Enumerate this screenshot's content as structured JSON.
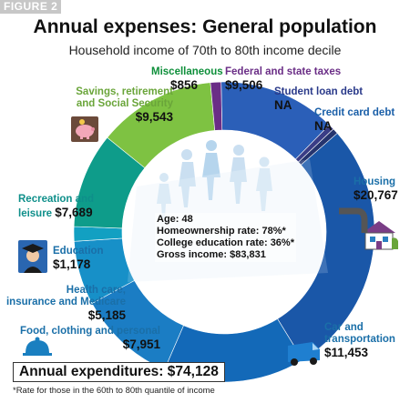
{
  "figure_label": "FIGURE 2",
  "chart_data": {
    "type": "pie",
    "title": "Annual expenses: General population",
    "subtitle": "Household income of 70th to 80th income decile",
    "categories": [
      "Federal and state taxes",
      "Student loan debt",
      "Credit card debt",
      "Housing",
      "Car and transportation",
      "Food, clothing and personal",
      "Health care, insurance and Medicare",
      "Education",
      "Recreation and leisure",
      "Savings, retirement and Social Security",
      "Miscellaneous"
    ],
    "values": [
      9506,
      null,
      null,
      20767,
      11453,
      7951,
      5185,
      1178,
      7689,
      9543,
      856
    ],
    "value_labels": [
      "$9,506",
      "NA",
      "NA",
      "$20,767",
      "$11,453",
      "$7,951",
      "$5,185",
      "$1,178",
      "$7,689",
      "$9,543",
      "$856"
    ],
    "colors": [
      "#2b5fb8",
      "#3a3d86",
      "#25346e",
      "#1a57a8",
      "#1369b8",
      "#1b7dc4",
      "#1790c8",
      "#12a0c2",
      "#0e9c8a",
      "#7ec242",
      "#6a2d86"
    ],
    "total_label": "Annual expenditures:",
    "total_value": "$74,128",
    "stats": [
      "Age: 48",
      "Homeownership rate: 78%*",
      "College education rate: 36%*",
      "Gross income: $83,831"
    ],
    "footnote": "*Rate for those in the 60th to 80th quantile of income"
  },
  "labels": {
    "misc": {
      "name": "Miscellaneous",
      "value": "$856"
    },
    "taxes": {
      "name": "Federal and state taxes",
      "value": "$9,506"
    },
    "student": {
      "name": "Student loan debt",
      "value": "NA"
    },
    "credit": {
      "name": "Credit card debt",
      "value": "NA"
    },
    "housing": {
      "name": "Housing",
      "value": "$20,767"
    },
    "car": {
      "name1": "Car and",
      "name2": "transportation",
      "value": "$11,453"
    },
    "food": {
      "name": "Food, clothing and personal",
      "value": "$7,951"
    },
    "health": {
      "name1": "Health care,",
      "name2": "insurance and Medicare",
      "value": "$5,185"
    },
    "education": {
      "name": "Education",
      "value": "$1,178"
    },
    "recreation": {
      "name1": "Recreation and",
      "name2": "leisure",
      "value": "$7,689"
    },
    "savings": {
      "name1": "Savings, retirement",
      "name2": "and Social Security",
      "value": "$9,543"
    }
  },
  "colors": {
    "teal": "#0e8f8a",
    "green": "#6aa53a",
    "purple": "#6a2d86",
    "navy": "#2a3a8a",
    "blue": "#1a5fa8",
    "housing_text": "#1a6fa8"
  },
  "icons": [
    "piggy-bank-icon",
    "house-icon",
    "graduate-icon",
    "van-icon",
    "cloche-icon",
    "people-silhouette-icon"
  ]
}
